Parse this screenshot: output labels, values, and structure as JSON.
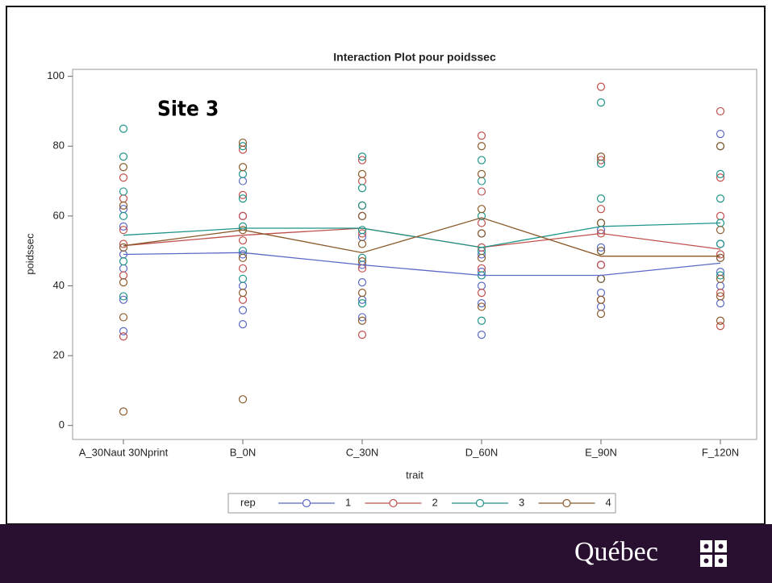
{
  "chart_data": {
    "type": "line",
    "title": "Interaction Plot pour poidssec",
    "annotation": "Site 3",
    "x_label": "trait",
    "y_label": "poidssec",
    "legend_title": "rep",
    "categories": [
      "A_30Naut 30Nprint",
      "B_0N",
      "C_30N",
      "D_60N",
      "E_90N",
      "F_120N"
    ],
    "ylim": [
      -4,
      102
    ],
    "yticks": [
      0,
      20,
      40,
      60,
      80,
      100
    ],
    "series": [
      {
        "name": "1",
        "color": "#5b68c4",
        "values": [
          49,
          49.5,
          46,
          43,
          43,
          46.5
        ],
        "observations": [
          [
            27,
            36,
            45,
            49,
            57,
            62
          ],
          [
            29,
            33,
            40,
            49,
            60,
            70
          ],
          [
            31,
            36,
            41,
            46,
            54,
            60
          ],
          [
            26,
            35,
            40,
            44,
            49,
            55
          ],
          [
            34,
            38,
            42,
            46,
            51,
            56
          ],
          [
            35,
            40,
            44,
            48,
            52,
            83.5
          ]
        ]
      },
      {
        "name": "2",
        "color": "#c0504d",
        "values": [
          51.5,
          54.5,
          56.5,
          51,
          55,
          50.5
        ],
        "observations": [
          [
            25.5,
            43,
            52,
            56,
            65,
            71
          ],
          [
            36,
            45,
            53,
            60,
            66,
            79
          ],
          [
            26,
            45,
            55,
            63,
            70,
            76
          ],
          [
            38,
            45,
            51,
            58,
            67,
            83
          ],
          [
            36,
            46,
            55,
            62,
            76,
            97
          ],
          [
            28.5,
            38,
            49,
            60,
            71,
            90
          ]
        ]
      },
      {
        "name": "3",
        "color": "#1f9488",
        "values": [
          54.5,
          56.5,
          56.5,
          51,
          57,
          58
        ],
        "observations": [
          [
            85,
            77,
            67,
            60,
            47,
            37
          ],
          [
            42,
            50,
            57,
            65,
            72,
            80
          ],
          [
            35,
            48,
            56,
            63,
            68,
            77
          ],
          [
            30,
            43,
            50,
            60,
            70,
            76
          ],
          [
            42,
            50,
            58,
            65,
            75,
            92.5
          ],
          [
            43,
            52,
            58,
            65,
            72,
            80
          ]
        ]
      },
      {
        "name": "4",
        "color": "#8b5a2b",
        "values": [
          51.5,
          56,
          49.5,
          59.5,
          48.5,
          48.5
        ],
        "observations": [
          [
            4,
            31,
            41,
            51,
            63,
            74
          ],
          [
            7.5,
            38,
            48,
            56,
            74,
            81
          ],
          [
            30,
            38,
            47,
            52,
            60,
            72
          ],
          [
            34,
            48,
            55,
            62,
            72,
            80
          ],
          [
            32,
            36,
            42,
            50,
            58,
            77
          ],
          [
            30,
            37,
            42,
            48,
            56,
            80
          ]
        ]
      }
    ]
  },
  "footer": {
    "logo": "Québec"
  }
}
